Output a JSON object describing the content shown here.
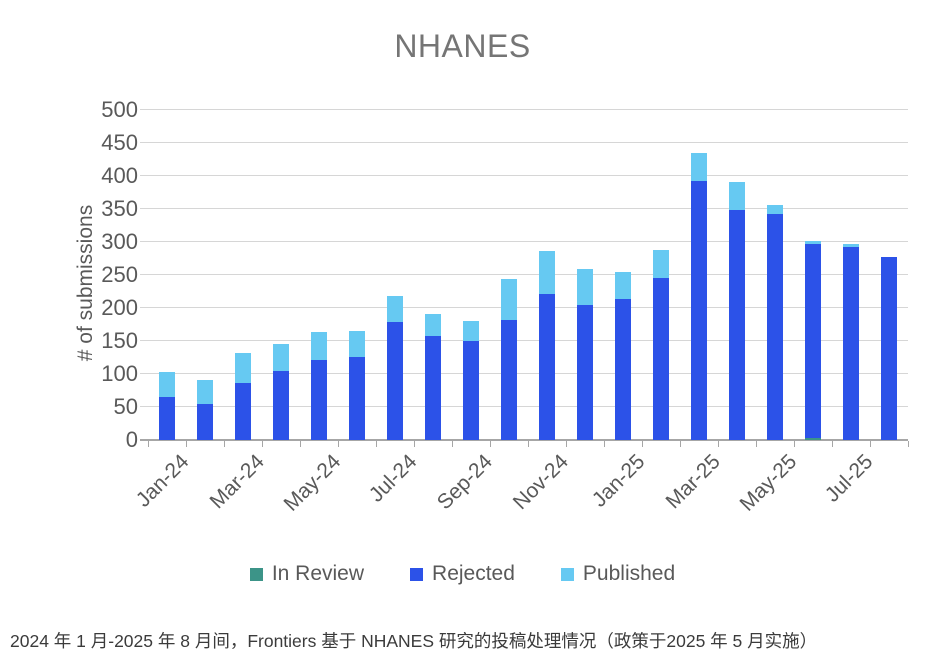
{
  "page": {
    "caption": "2024 年 1 月-2025 年 8 月间，Frontiers 基于 NHANES 研究的投稿处理情况（政策于2025 年 5 月实施）"
  },
  "chart_data": {
    "type": "bar",
    "stacked": true,
    "title": "NHANES",
    "xlabel": "",
    "ylabel": "# of submissions",
    "ylim": [
      0,
      500
    ],
    "yticks": [
      0,
      50,
      100,
      150,
      200,
      250,
      300,
      350,
      400,
      450,
      500
    ],
    "grid": true,
    "legend_position": "bottom",
    "categories": [
      "Jan-24",
      "Feb-24",
      "Mar-24",
      "Apr-24",
      "May-24",
      "Jun-24",
      "Jul-24",
      "Aug-24",
      "Sep-24",
      "Oct-24",
      "Nov-24",
      "Dec-24",
      "Jan-25",
      "Feb-25",
      "Mar-25",
      "Apr-25",
      "May-25",
      "Jun-25",
      "Jul-25",
      "Aug-25"
    ],
    "xtick_label_every": 2,
    "series": [
      {
        "name": "In Review",
        "color": "#3C9488",
        "values": [
          0,
          0,
          0,
          0,
          0,
          0,
          0,
          0,
          0,
          0,
          0,
          0,
          0,
          0,
          0,
          0,
          0,
          3,
          0,
          0
        ]
      },
      {
        "name": "Rejected",
        "color": "#2C52E8",
        "values": [
          65,
          54,
          86,
          104,
          121,
          125,
          179,
          157,
          150,
          182,
          221,
          204,
          213,
          246,
          392,
          349,
          342,
          294,
          292,
          278
        ]
      },
      {
        "name": "Published",
        "color": "#66C9F2",
        "values": [
          38,
          36,
          46,
          41,
          43,
          40,
          39,
          33,
          31,
          62,
          65,
          55,
          41,
          42,
          42,
          42,
          13,
          4,
          4,
          0
        ]
      }
    ],
    "totals": [
      103,
      90,
      132,
      145,
      164,
      165,
      218,
      190,
      181,
      244,
      286,
      259,
      254,
      288,
      434,
      391,
      355,
      301,
      296,
      278
    ],
    "colors": {
      "title_text": "#757575",
      "axis_text": "#595959",
      "gridline": "#d6d6d6",
      "axis_line": "#a6a6a6",
      "caption_text": "#3b3b3b",
      "background": "#ffffff"
    }
  }
}
